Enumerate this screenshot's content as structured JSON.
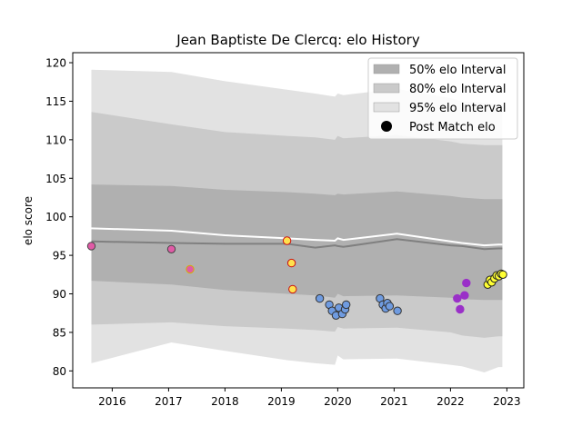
{
  "chart_data": {
    "type": "scatter",
    "title": "Jean Baptiste De Clercq: elo History",
    "xlabel": "",
    "ylabel": "elo score",
    "xlim": [
      2015.3,
      2023.3
    ],
    "ylim": [
      77.8,
      121.3
    ],
    "x_ticks": [
      2016,
      2017,
      2018,
      2019,
      2020,
      2021,
      2022,
      2023
    ],
    "y_ticks": [
      80,
      85,
      90,
      95,
      100,
      105,
      110,
      115,
      120
    ],
    "grid": false,
    "legend_position": "top-right",
    "colors": {
      "band_50": "#b0b0b0",
      "band_80": "#cacaca",
      "band_95": "#e2e2e2",
      "median_line": "#808080",
      "mean_line": "#ffffff"
    },
    "legend": [
      {
        "label": "50% elo Interval",
        "kind": "patch",
        "color": "#b0b0b0"
      },
      {
        "label": "80% elo Interval",
        "kind": "patch",
        "color": "#cacaca"
      },
      {
        "label": "95% elo Interval",
        "kind": "patch",
        "color": "#e2e2e2"
      },
      {
        "label": "Post Match elo",
        "kind": "marker",
        "color": "#000000"
      }
    ],
    "bands": {
      "x": [
        2015.63,
        2017.05,
        2018.0,
        2019.1,
        2019.6,
        2019.95,
        2020.0,
        2020.1,
        2021.05,
        2022.0,
        2022.2,
        2022.6,
        2022.85,
        2022.92
      ],
      "lo95": [
        81.0,
        83.7,
        82.6,
        81.4,
        81.0,
        80.8,
        82.0,
        81.5,
        81.6,
        80.8,
        80.6,
        79.8,
        80.5,
        80.5
      ],
      "hi95": [
        119.1,
        118.8,
        117.6,
        116.5,
        116.0,
        115.6,
        116.0,
        115.8,
        116.6,
        115.4,
        115.0,
        114.8,
        114.6,
        114.6
      ],
      "lo80": [
        86.0,
        86.3,
        85.8,
        85.5,
        85.3,
        85.1,
        85.7,
        85.5,
        85.6,
        85.0,
        84.6,
        84.3,
        84.5,
        84.5
      ],
      "hi80": [
        113.6,
        112.0,
        111.0,
        110.5,
        110.3,
        110.0,
        110.5,
        110.2,
        110.6,
        109.8,
        109.5,
        109.3,
        109.3,
        109.3
      ],
      "lo50": [
        91.7,
        91.2,
        90.5,
        90.0,
        89.8,
        89.5,
        90.0,
        89.7,
        89.8,
        89.5,
        89.3,
        89.2,
        89.2,
        89.2
      ],
      "hi50": [
        104.2,
        104.0,
        103.5,
        103.2,
        103.0,
        102.8,
        103.0,
        102.9,
        103.3,
        102.7,
        102.5,
        102.3,
        102.3,
        102.3
      ],
      "median": [
        96.8,
        96.6,
        96.5,
        96.5,
        96.0,
        96.3,
        96.2,
        96.1,
        97.1,
        96.3,
        96.2,
        95.8,
        95.9,
        95.9
      ],
      "mean": [
        98.5,
        98.2,
        97.6,
        97.2,
        97.0,
        96.9,
        97.2,
        97.0,
        97.8,
        96.8,
        96.6,
        96.3,
        96.4,
        96.4
      ]
    },
    "series": [
      {
        "fill": "#e05ba6",
        "edge": "#444444",
        "points": [
          [
            2015.63,
            96.2
          ],
          [
            2017.05,
            95.8
          ]
        ]
      },
      {
        "fill": "#e05ba6",
        "edge": "#d4b000",
        "points": [
          [
            2017.38,
            93.2
          ]
        ]
      },
      {
        "fill": "#ffe14d",
        "edge": "#cc1010",
        "points": [
          [
            2019.1,
            96.9
          ],
          [
            2019.18,
            94.0
          ],
          [
            2019.2,
            90.6
          ]
        ]
      },
      {
        "fill": "#6f9be0",
        "edge": "#333333",
        "points": [
          [
            2019.68,
            89.4
          ],
          [
            2019.85,
            88.6
          ],
          [
            2019.9,
            87.8
          ],
          [
            2019.97,
            87.2
          ],
          [
            2020.02,
            88.2
          ],
          [
            2020.08,
            87.4
          ],
          [
            2020.13,
            88.0
          ],
          [
            2020.15,
            88.6
          ],
          [
            2020.75,
            89.4
          ],
          [
            2020.8,
            88.6
          ],
          [
            2020.85,
            88.1
          ],
          [
            2020.88,
            88.8
          ],
          [
            2020.92,
            88.4
          ],
          [
            2021.06,
            87.8
          ]
        ]
      },
      {
        "fill": "#9a30c8",
        "edge": "#9a30c8",
        "points": [
          [
            2022.12,
            89.4
          ],
          [
            2022.17,
            88.0
          ],
          [
            2022.25,
            89.8
          ],
          [
            2022.28,
            91.4
          ]
        ]
      },
      {
        "fill": "#ffff33",
        "edge": "#222222",
        "points": [
          [
            2022.66,
            91.2
          ],
          [
            2022.7,
            91.8
          ],
          [
            2022.73,
            91.5
          ],
          [
            2022.78,
            92.0
          ],
          [
            2022.82,
            92.4
          ],
          [
            2022.86,
            92.3
          ],
          [
            2022.9,
            92.6
          ],
          [
            2022.93,
            92.5
          ]
        ]
      }
    ]
  }
}
